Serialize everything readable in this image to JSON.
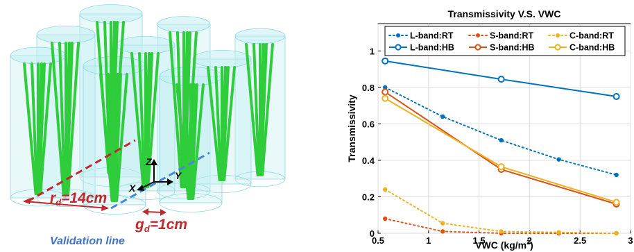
{
  "diagram": {
    "radius_label": "rd=14cm",
    "radius_label_main": "r",
    "radius_label_sub": "d",
    "radius_label_rest": "=14cm",
    "gap_label_main": "g",
    "gap_label_sub": "d",
    "gap_label_rest": "=1cm",
    "validation_line_label": "Validation line",
    "axis_x": "X",
    "axis_y": "Y",
    "axis_z": "Z",
    "colors": {
      "stem": "#2fcc3c",
      "cylinder": "#bfeef2",
      "radius_line": "#c0282d",
      "validation_line": "#4a86d6"
    }
  },
  "chart_data": {
    "type": "line",
    "title": "Transmissivity V.S. VWC",
    "xlabel_main": "VWC (kg/m",
    "xlabel_sup": "2",
    "xlabel_end": ")",
    "ylabel": "Transmissivity",
    "xlim": [
      0.5,
      3
    ],
    "ylim": [
      0,
      1.15
    ],
    "xticks": [
      0.5,
      1,
      1.5,
      2,
      2.5,
      3
    ],
    "xtick_labels": [
      "0.5",
      "1",
      "1.5",
      "2",
      "2.5",
      "3"
    ],
    "yticks": [
      0,
      0.2,
      0.4,
      0.6,
      0.8,
      1
    ],
    "ytick_labels": [
      "0",
      "0.2",
      "0.4",
      "0.6",
      "0.8",
      "1"
    ],
    "grid": true,
    "legend_position": "top",
    "series": [
      {
        "name": "L-band:RT",
        "color": "#0072bd",
        "style": "dotted",
        "marker": "dot",
        "points": [
          [
            0.57,
            0.8
          ],
          [
            1.14,
            0.64
          ],
          [
            1.72,
            0.51
          ],
          [
            2.29,
            0.405
          ],
          [
            2.86,
            0.32
          ]
        ]
      },
      {
        "name": "S-band:RT",
        "color": "#d95319",
        "style": "dotted",
        "marker": "dot",
        "points": [
          [
            0.57,
            0.08
          ],
          [
            1.14,
            0.01
          ],
          [
            1.72,
            0.0
          ],
          [
            2.29,
            0.0
          ],
          [
            2.86,
            0.0
          ]
        ]
      },
      {
        "name": "C-band:RT",
        "color": "#edb120",
        "style": "dotted",
        "marker": "dot",
        "points": [
          [
            0.57,
            0.24
          ],
          [
            1.14,
            0.055
          ],
          [
            1.72,
            0.01
          ],
          [
            2.29,
            0.005
          ],
          [
            2.86,
            0.0
          ]
        ]
      },
      {
        "name": "L-band:HB",
        "color": "#0072bd",
        "style": "solid",
        "marker": "circle",
        "points": [
          [
            0.57,
            0.945
          ],
          [
            1.72,
            0.845
          ],
          [
            2.86,
            0.75
          ]
        ]
      },
      {
        "name": "S-band:HB",
        "color": "#d95319",
        "style": "solid",
        "marker": "circle",
        "points": [
          [
            0.57,
            0.775
          ],
          [
            1.72,
            0.35
          ],
          [
            2.86,
            0.16
          ]
        ]
      },
      {
        "name": "C-band:HB",
        "color": "#edb120",
        "style": "solid",
        "marker": "circle",
        "points": [
          [
            0.57,
            0.74
          ],
          [
            1.72,
            0.365
          ],
          [
            2.86,
            0.17
          ]
        ]
      }
    ]
  }
}
